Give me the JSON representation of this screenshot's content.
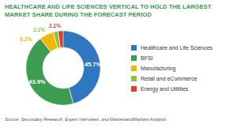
{
  "chart_data": {
    "type": "donut",
    "title": "HEALTHCARE AND LIFE SCIENCES VERTICAL TO HOLD THE LARGEST MARKET SHARE DURING THE FORECAST PERIOD",
    "source": "Source: Secondary Research, Expert Interviews, and MarketsandMarkets Analysis",
    "categories": [
      "Healthcare and Life Sciences",
      "BFSI",
      "Manufacturing",
      "Retail and eCommerce",
      "Energy and Utilities"
    ],
    "values": [
      45.7,
      43.9,
      6.2,
      2.1,
      2.1
    ],
    "value_labels": [
      "45.7%",
      "43.9%",
      "6.2%",
      "2.1%",
      "2.1%"
    ],
    "colors": [
      "#2f78c0",
      "#3c9c50",
      "#f2b705",
      "#8cc43f",
      "#e23b2e"
    ],
    "data_labels": true,
    "legend": "right"
  }
}
